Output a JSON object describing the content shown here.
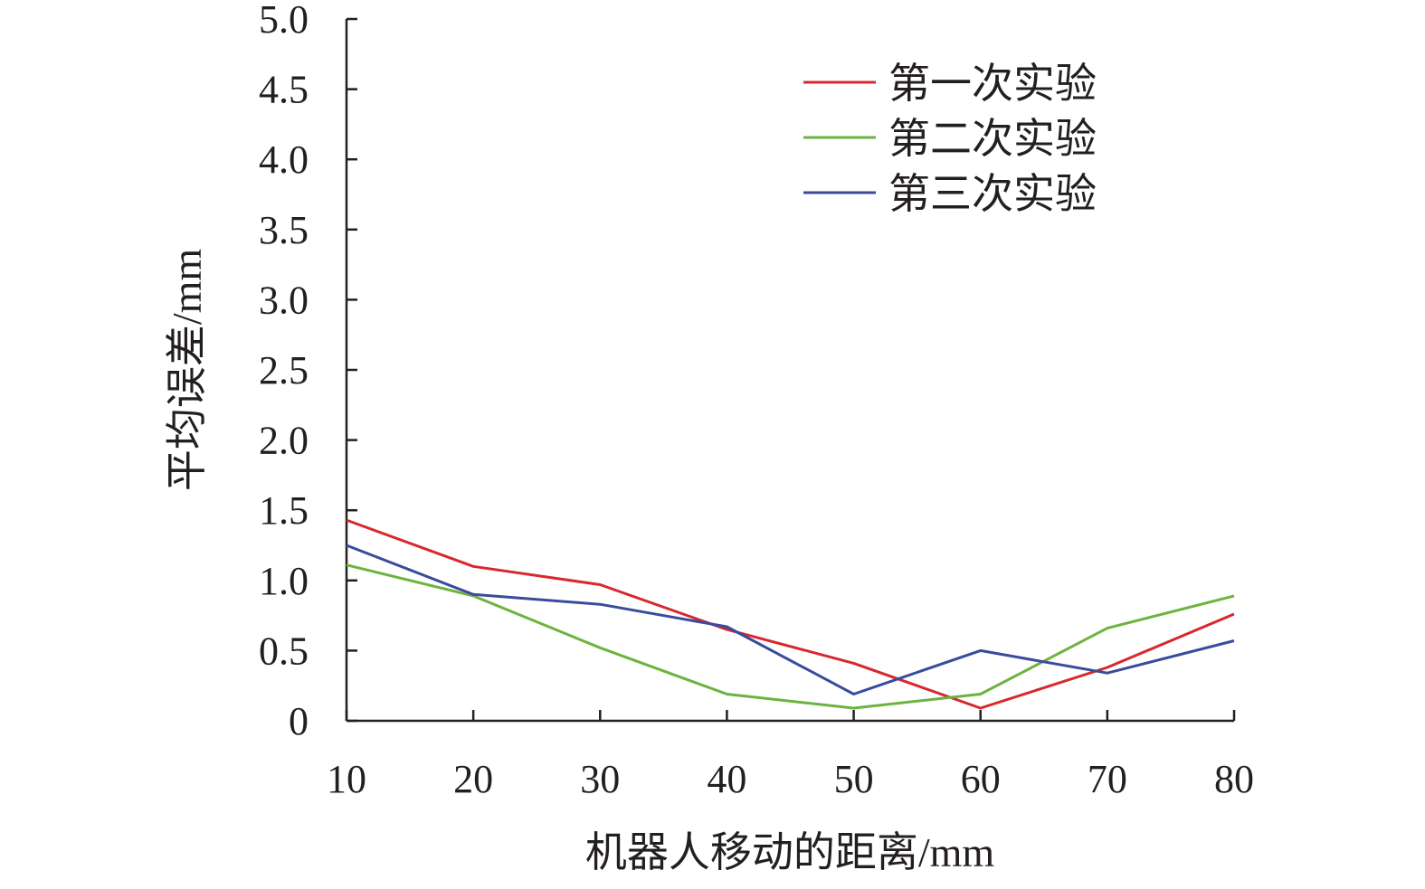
{
  "chart_data": {
    "type": "line",
    "xlabel": "机器人移动的距离/mm",
    "ylabel": "平均误差/mm",
    "x": [
      10,
      20,
      30,
      40,
      50,
      60,
      70,
      80
    ],
    "x_ticks": [
      "10",
      "20",
      "30",
      "40",
      "50",
      "60",
      "70",
      "80"
    ],
    "y_ticks": [
      "0",
      "0.5",
      "1.0",
      "1.5",
      "2.0",
      "2.5",
      "3.0",
      "3.5",
      "4.0",
      "4.5",
      "5.0"
    ],
    "xlim": [
      10,
      80
    ],
    "ylim": [
      0,
      5
    ],
    "grid": false,
    "legend_position": "top-right",
    "series": [
      {
        "name": "第一次实验",
        "color": "#d7282f",
        "values": [
          1.43,
          1.1,
          0.97,
          0.65,
          0.41,
          0.09,
          0.38,
          0.76
        ]
      },
      {
        "name": "第二次实验",
        "color": "#6db33f",
        "values": [
          1.11,
          0.89,
          0.52,
          0.19,
          0.09,
          0.19,
          0.66,
          0.89
        ]
      },
      {
        "name": "第三次实验",
        "color": "#3a4b9c",
        "values": [
          1.25,
          0.9,
          0.83,
          0.67,
          0.19,
          0.5,
          0.34,
          0.57
        ]
      }
    ]
  }
}
